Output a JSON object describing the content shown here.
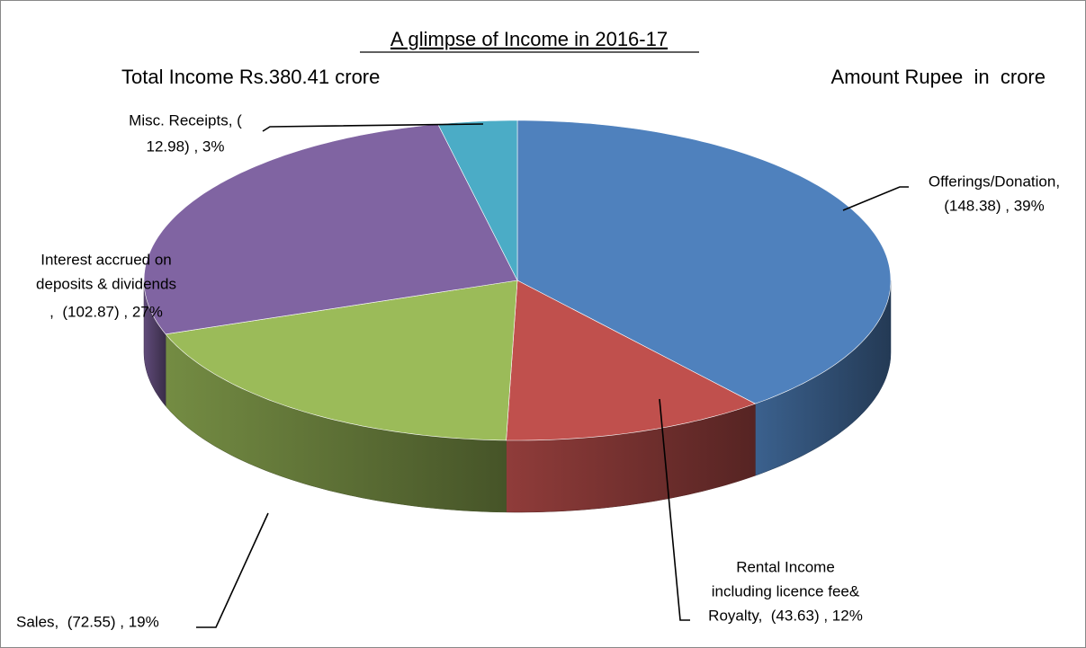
{
  "chart_data": {
    "type": "pie3d",
    "title": "A glimpse of Income in 2016-17",
    "subtitle": "Total Income Rs.380.41 crore",
    "annotation": "Amount Rupee  in  crore",
    "values": [
      148.38,
      43.63,
      72.55,
      102.87,
      12.98
    ],
    "value_labels": [
      [
        "Offerings/Donation,",
        "(148.38) , 39%"
      ],
      [
        "Rental Income",
        "including licence fee&",
        "Royalty,  (43.63) , 12%"
      ],
      [
        "Sales,  (72.55) , 19%"
      ],
      [
        "Interest accrued on",
        "deposits & dividends",
        ",  (102.87) , 27%"
      ],
      [
        "Misc. Receipts, (",
        "12.98) , 3%"
      ]
    ],
    "colors": [
      "#4f81bd",
      "#c0504d",
      "#9bbb59",
      "#8064a2",
      "#4bacc6"
    ]
  }
}
